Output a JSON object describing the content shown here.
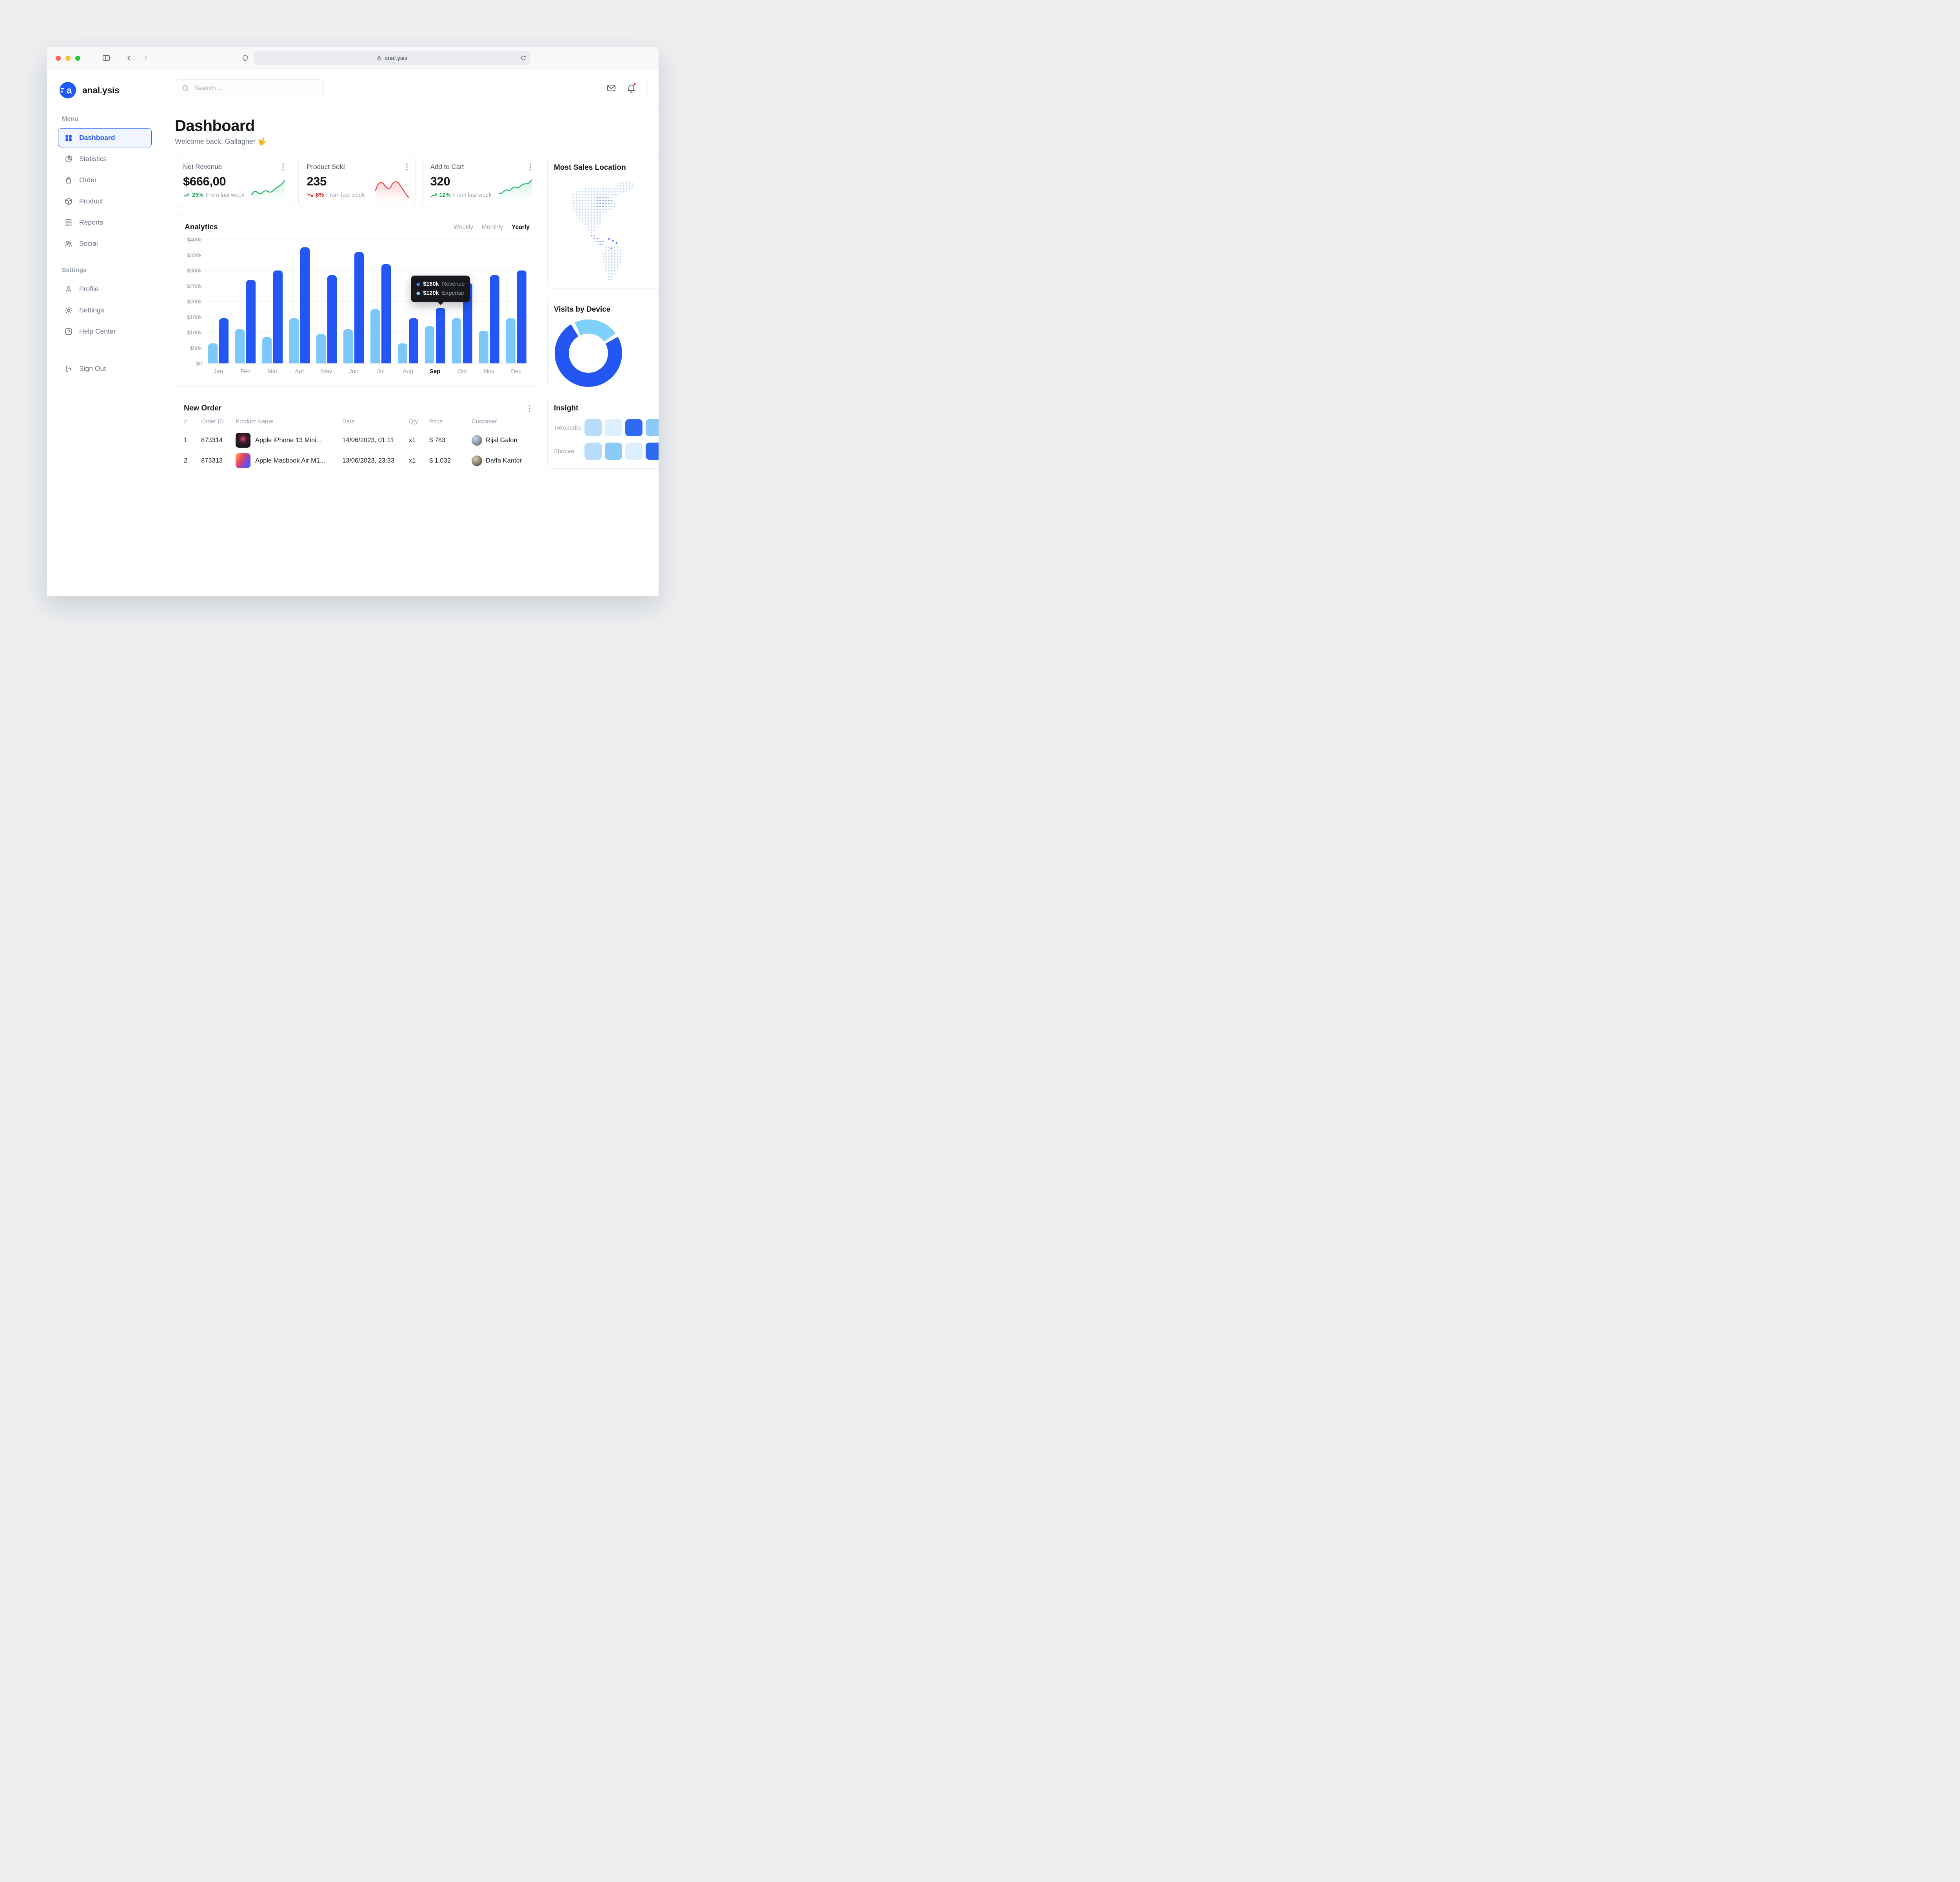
{
  "browser": {
    "address": "anal.ysis"
  },
  "sidebar": {
    "logo": {
      "text": "anal.ysis",
      "mark": "a"
    },
    "sections": [
      {
        "label": "Menu",
        "items": [
          {
            "label": "Dashboard",
            "icon": "grid-icon",
            "active": true
          },
          {
            "label": "Statistics",
            "icon": "pie-chart-icon",
            "active": false
          },
          {
            "label": "Order",
            "icon": "shopping-bag-icon",
            "active": false
          },
          {
            "label": "Product",
            "icon": "package-icon",
            "active": false
          },
          {
            "label": "Reports",
            "icon": "document-icon",
            "active": false
          },
          {
            "label": "Social",
            "icon": "people-icon",
            "active": false
          }
        ]
      },
      {
        "label": "Settings",
        "items": [
          {
            "label": "Profile",
            "icon": "user-icon",
            "active": false
          },
          {
            "label": "Settings",
            "icon": "gear-icon",
            "active": false
          },
          {
            "label": "Help Center",
            "icon": "help-icon",
            "active": false
          }
        ]
      }
    ],
    "sign_out": {
      "label": "Sign Out",
      "icon": "logout-icon"
    }
  },
  "topbar": {
    "search_placeholder": "Search ..."
  },
  "header": {
    "title": "Dashboard",
    "welcome": "Welcome back, Gallagher 🤟"
  },
  "stat_cards": [
    {
      "title": "Net Revenue",
      "value": "$666,00",
      "delta": "25%",
      "direction": "up",
      "note": "From last week",
      "spark_color": "green"
    },
    {
      "title": "Product Sold",
      "value": "235",
      "delta": "8%",
      "direction": "down",
      "note": "From last week",
      "spark_color": "red"
    },
    {
      "title": "Add to Cart",
      "value": "320",
      "delta": "12%",
      "direction": "up",
      "note": "From last week",
      "spark_color": "green"
    }
  ],
  "analytics": {
    "title": "Analytics",
    "range_options": [
      "Weekly",
      "Monthly",
      "Yearly"
    ],
    "active_range": "Yearly",
    "tooltip": {
      "revenue_value": "$180k",
      "revenue_label": "Revenue",
      "expense_value": "$120k",
      "expense_label": "Expense"
    }
  },
  "chart_data": {
    "type": "bar",
    "title": "Analytics (Yearly)",
    "categories": [
      "Jan",
      "Feb",
      "Mar",
      "Apr",
      "May",
      "Jun",
      "Jul",
      "Aug",
      "Sep",
      "Oct",
      "Nov",
      "Dec"
    ],
    "series": [
      {
        "name": "Expense",
        "color": "#7cc8fa",
        "values": [
          65,
          110,
          85,
          145,
          95,
          110,
          175,
          65,
          120,
          145,
          105,
          145
        ]
      },
      {
        "name": "Revenue",
        "color": "#2356f3",
        "values": [
          145,
          270,
          300,
          375,
          285,
          360,
          320,
          145,
          180,
          260,
          285,
          300
        ]
      }
    ],
    "value_unit": "USD thousands",
    "ylim": [
      0,
      400
    ],
    "y_ticks_top_to_bottom": [
      "$400k",
      "$350k",
      "$300k",
      "$250k",
      "$200k",
      "$150k",
      "$100k",
      "$50k",
      "$0"
    ],
    "highlighted_category": "Sep",
    "highlighted_values": {
      "Revenue": 180,
      "Expense": 120
    },
    "grid": true,
    "legend": "none"
  },
  "new_order": {
    "title": "New Order",
    "columns": [
      "#",
      "Order ID",
      "Product Name",
      "Date",
      "Qty",
      "Price",
      "Customer"
    ],
    "rows": [
      {
        "num": "1",
        "order_id": "873314",
        "product": "Apple iPhone 13 Mini...",
        "date": "14/06/2023, 01:11",
        "qty": "x1",
        "price": "$ 783",
        "customer": "Rijal Galon"
      },
      {
        "num": "2",
        "order_id": "873313",
        "product": "Apple Macbook Air M1...",
        "date": "13/06/2023, 23:33",
        "qty": "x1",
        "price": "$ 1.032",
        "customer": "Daffa Kantor"
      }
    ]
  },
  "right_panel": {
    "most_sales_location": {
      "title": "Most Sales Location"
    },
    "visits_by_device": {
      "title": "Visits by Device"
    },
    "insight": {
      "title": "Insight",
      "rows": [
        {
          "label": "Tokopedia"
        },
        {
          "label": "Shopee"
        }
      ]
    }
  },
  "colors": {
    "primary_blue": "#2356f3",
    "light_blue": "#7cc8fa",
    "sidebar_active_blue": "#1d5bf8",
    "green": "#16a34a",
    "red": "#dc2626",
    "notification_red": "#ef4444",
    "tooltip_bg": "#16181d"
  }
}
